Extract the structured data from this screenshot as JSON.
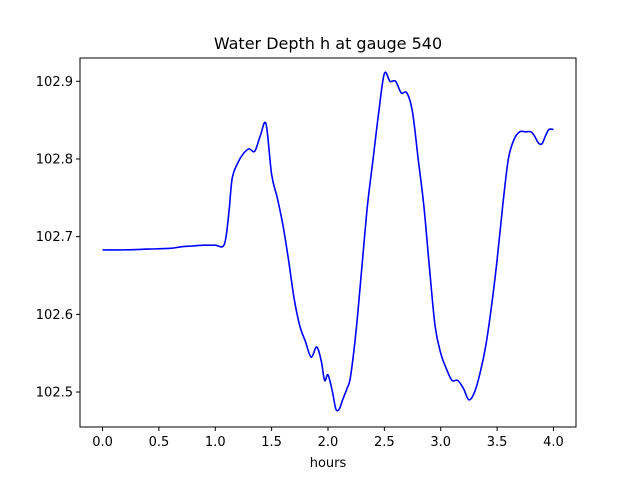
{
  "chart_data": {
    "type": "line",
    "title": "Water Depth h at gauge 540",
    "xlabel": "hours",
    "ylabel": "",
    "xlim": [
      -0.2,
      4.2
    ],
    "ylim": [
      102.455,
      102.93
    ],
    "xticks": [
      0.0,
      0.5,
      1.0,
      1.5,
      2.0,
      2.5,
      3.0,
      3.5,
      4.0
    ],
    "xtick_labels": [
      "0.0",
      "0.5",
      "1.0",
      "1.5",
      "2.0",
      "2.5",
      "3.0",
      "3.5",
      "4.0"
    ],
    "yticks": [
      102.5,
      102.6,
      102.7,
      102.8,
      102.9
    ],
    "ytick_labels": [
      "102.5",
      "102.6",
      "102.7",
      "102.8",
      "102.9"
    ],
    "grid": false,
    "legend": "none",
    "series": [
      {
        "color": "#0000ff",
        "x": [
          0.0,
          0.2,
          0.4,
          0.6,
          0.7,
          0.8,
          0.9,
          1.0,
          1.08,
          1.12,
          1.15,
          1.2,
          1.25,
          1.3,
          1.35,
          1.4,
          1.45,
          1.5,
          1.55,
          1.6,
          1.65,
          1.7,
          1.75,
          1.8,
          1.85,
          1.9,
          1.94,
          1.97,
          2.0,
          2.04,
          2.07,
          2.1,
          2.13,
          2.17,
          2.2,
          2.25,
          2.3,
          2.35,
          2.4,
          2.45,
          2.5,
          2.55,
          2.6,
          2.65,
          2.7,
          2.75,
          2.8,
          2.85,
          2.9,
          2.95,
          3.0,
          3.05,
          3.1,
          3.15,
          3.2,
          3.25,
          3.3,
          3.35,
          3.4,
          3.45,
          3.5,
          3.55,
          3.6,
          3.65,
          3.7,
          3.75,
          3.8,
          3.83,
          3.87,
          3.9,
          3.93,
          3.96,
          4.0
        ],
        "y": [
          102.683,
          102.683,
          102.684,
          102.685,
          102.687,
          102.688,
          102.689,
          102.689,
          102.69,
          102.73,
          102.775,
          102.795,
          102.807,
          102.813,
          102.81,
          102.83,
          102.845,
          102.78,
          102.75,
          102.715,
          102.67,
          102.62,
          102.585,
          102.565,
          102.545,
          102.558,
          102.54,
          102.515,
          102.522,
          102.5,
          102.478,
          102.478,
          102.49,
          102.505,
          102.52,
          102.58,
          102.66,
          102.74,
          102.8,
          102.86,
          102.91,
          102.9,
          102.9,
          102.885,
          102.885,
          102.86,
          102.8,
          102.74,
          102.66,
          102.585,
          102.55,
          102.53,
          102.515,
          102.515,
          102.505,
          102.49,
          102.5,
          102.525,
          102.56,
          102.61,
          102.67,
          102.74,
          102.8,
          102.825,
          102.835,
          102.835,
          102.835,
          102.83,
          102.82,
          102.82,
          102.83,
          102.838,
          102.838
        ]
      }
    ]
  }
}
